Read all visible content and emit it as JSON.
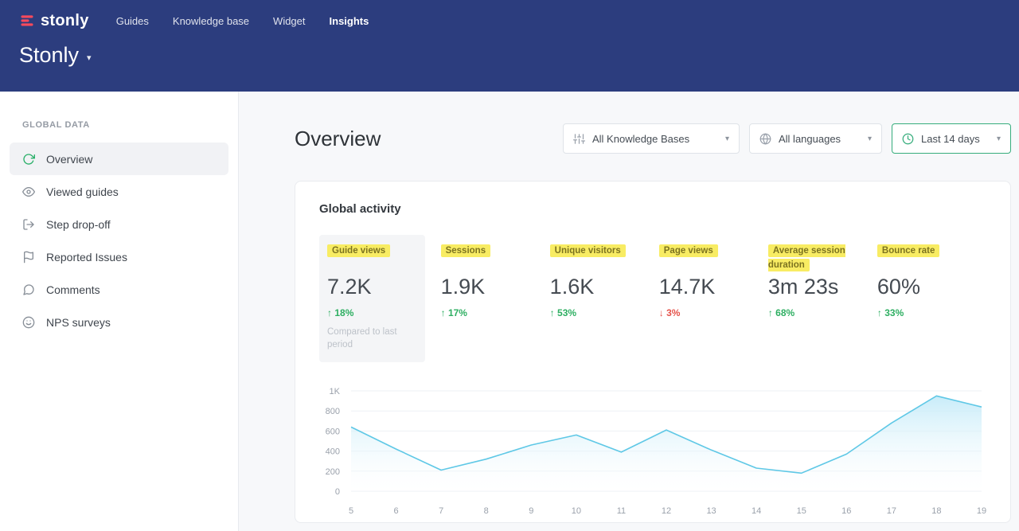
{
  "navbar": {
    "logo_text": "stonly",
    "items": [
      "Guides",
      "Knowledge base",
      "Widget",
      "Insights"
    ],
    "workspace_title": "Stonly",
    "caret": "▾"
  },
  "sidebar": {
    "section_label": "GLOBAL DATA",
    "items": [
      {
        "label": "Overview",
        "active": true
      },
      {
        "label": "Viewed guides"
      },
      {
        "label": "Step drop-off"
      },
      {
        "label": "Reported Issues"
      },
      {
        "label": "Comments"
      },
      {
        "label": "NPS surveys"
      }
    ]
  },
  "main": {
    "title": "Overview",
    "filters": [
      {
        "label": "All Knowledge Bases",
        "icon": "sliders-icon"
      },
      {
        "label": "All languages",
        "icon": "globe-icon"
      },
      {
        "label": "Last 14 days",
        "icon": "clock-icon",
        "active": true
      }
    ],
    "card": {
      "title": "Global activity",
      "metrics": [
        {
          "label": "Guide views",
          "value": "7.2K",
          "arrow": "↑",
          "change": "18%",
          "direction": "up",
          "note": "Compared to last period",
          "selected": true
        },
        {
          "label": "Sessions",
          "value": "1.9K",
          "arrow": "↑",
          "change": "17%",
          "direction": "up"
        },
        {
          "label": "Unique visitors",
          "value": "1.6K",
          "arrow": "↑",
          "change": "53%",
          "direction": "up"
        },
        {
          "label": "Page views",
          "value": "14.7K",
          "arrow": "↓",
          "change": "3%",
          "direction": "down"
        },
        {
          "label": "Average session duration",
          "value": "3m 23s",
          "arrow": "↑",
          "change": "68%",
          "direction": "up"
        },
        {
          "label": "Bounce rate",
          "value": "60%",
          "arrow": "↑",
          "change": "33%",
          "direction": "up"
        }
      ]
    }
  },
  "chart_data": {
    "type": "area",
    "title": "Global activity",
    "x": [
      5,
      6,
      7,
      8,
      9,
      10,
      11,
      12,
      13,
      14,
      15,
      16,
      17,
      18,
      19
    ],
    "values": [
      640,
      420,
      210,
      320,
      460,
      560,
      390,
      610,
      410,
      230,
      180,
      370,
      680,
      950,
      840
    ],
    "xlabel": "",
    "ylabel": "",
    "ylim": [
      0,
      1000
    ],
    "yticks": [
      {
        "value": 0,
        "label": "0"
      },
      {
        "value": 200,
        "label": "200"
      },
      {
        "value": 400,
        "label": "400"
      },
      {
        "value": 600,
        "label": "600"
      },
      {
        "value": 800,
        "label": "800"
      },
      {
        "value": 1000,
        "label": "1K"
      }
    ],
    "grid": true,
    "legend": false,
    "line_color": "#5fc8e6",
    "area_top_color": "#c2eaf8"
  },
  "colors": {
    "navbar_bg": "#2c3d7e",
    "brand_red": "#fb4a5c",
    "highlight_yellow": "#f8ec63",
    "positive_green": "#2eaf62",
    "negative_red": "#e5534b",
    "active_filter_border": "#36ad7c",
    "active_sidebar_icon": "#2bb06a"
  }
}
